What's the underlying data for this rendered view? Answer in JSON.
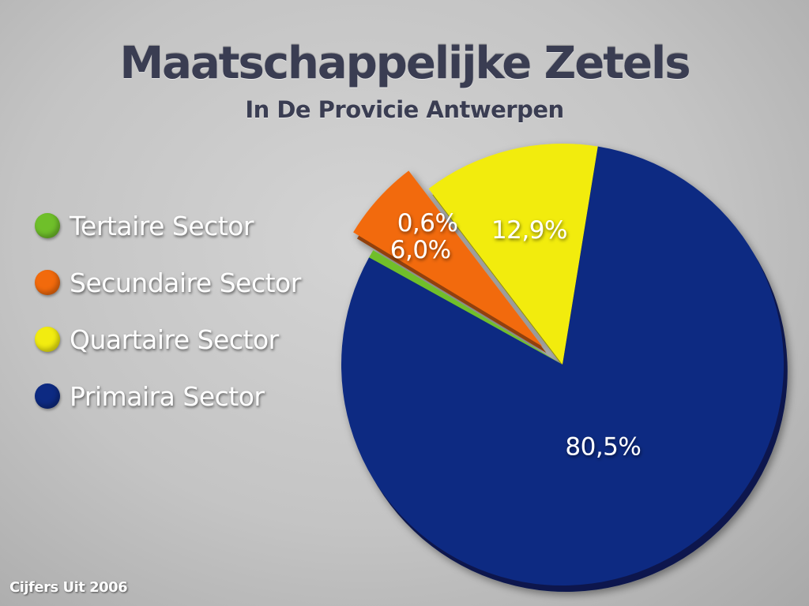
{
  "title": "Maatschappelijke Zetels",
  "subtitle": "In De Provicie Antwerpen",
  "source": "Cijfers Uit 2006",
  "chart_data": {
    "type": "pie",
    "title": "Maatschappelijke Zetels",
    "subtitle": "In De Provicie Antwerpen",
    "legend_position": "left",
    "slices": [
      {
        "name": "Tertaire Sector",
        "value": 0.6,
        "label": "0,6%",
        "color": "#6fbf2a"
      },
      {
        "name": "Secundaire Sector",
        "value": 6.0,
        "label": "6,0%",
        "color": "#f26a0c",
        "exploded": true
      },
      {
        "name": "Quartaire Sector",
        "value": 12.9,
        "label": "12,9%",
        "color": "#f2ec10"
      },
      {
        "name": "Primaira Sector",
        "value": 80.5,
        "label": "80,5%",
        "color": "#0d2a82"
      }
    ],
    "legend_order": [
      "Tertaire Sector",
      "Secundaire Sector",
      "Quartaire Sector",
      "Primaira Sector"
    ]
  }
}
